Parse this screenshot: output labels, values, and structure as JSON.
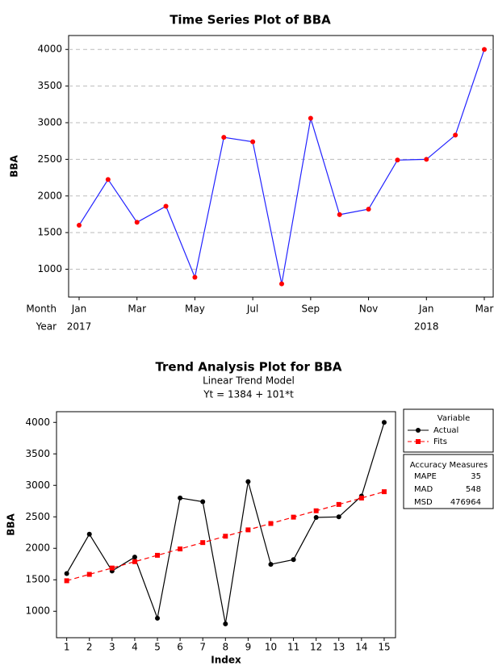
{
  "chart_data": [
    {
      "type": "line",
      "title": "Time Series Plot of BBA",
      "ylabel": "BBA",
      "x_row_labels": [
        "Month",
        "Year"
      ],
      "categories": [
        "Jan",
        null,
        "Mar",
        null,
        "May",
        null,
        "Jul",
        null,
        "Sep",
        null,
        "Nov",
        null,
        "Jan",
        null,
        "Mar"
      ],
      "years": [
        "2017",
        null,
        null,
        null,
        null,
        null,
        null,
        null,
        null,
        null,
        null,
        null,
        "2018",
        null,
        null
      ],
      "series": [
        {
          "color": "#2222ff",
          "marker_color": "#ff0000",
          "marker": "circle",
          "linestyle": "solid",
          "values": [
            1600,
            2225,
            1640,
            1860,
            890,
            2800,
            2740,
            800,
            3060,
            1745,
            1820,
            2490,
            2500,
            2830,
            4000
          ]
        }
      ],
      "ylim": [
        620,
        4190
      ],
      "yticks": [
        1000,
        1500,
        2000,
        2500,
        3000,
        3500,
        4000
      ],
      "grid": true
    },
    {
      "type": "line",
      "title": "Trend Analysis Plot for BBA",
      "subtitle": "Linear Trend Model",
      "equation": "Yt = 1384 + 101*t",
      "xlabel": "Index",
      "ylabel": "BBA",
      "x": [
        1,
        2,
        3,
        4,
        5,
        6,
        7,
        8,
        9,
        10,
        11,
        12,
        13,
        14,
        15
      ],
      "series": [
        {
          "name": "Actual",
          "color": "#000000",
          "marker_color": "#000000",
          "marker": "circle",
          "linestyle": "solid",
          "values": [
            1600,
            2225,
            1640,
            1860,
            890,
            2800,
            2740,
            800,
            3060,
            1745,
            1820,
            2490,
            2500,
            2830,
            4000
          ]
        },
        {
          "name": "Fits",
          "color": "#ff0000",
          "marker_color": "#ff0000",
          "marker": "square",
          "linestyle": "dashed",
          "values": [
            1485,
            1586,
            1687,
            1788,
            1889,
            1990,
            2091,
            2192,
            2293,
            2394,
            2495,
            2596,
            2697,
            2798,
            2899
          ]
        }
      ],
      "legend_title": "Variable",
      "accuracy": {
        "title": "Accuracy Measures",
        "rows": [
          [
            "MAPE",
            35
          ],
          [
            "MAD",
            548
          ],
          [
            "MSD",
            476964
          ]
        ]
      },
      "xlim": [
        0.55,
        15.5
      ],
      "xticks": [
        1,
        2,
        3,
        4,
        5,
        6,
        7,
        8,
        9,
        10,
        11,
        12,
        13,
        14,
        15
      ],
      "ylim": [
        580,
        4170
      ],
      "yticks": [
        1000,
        1500,
        2000,
        2500,
        3000,
        3500,
        4000
      ],
      "grid": false
    }
  ]
}
